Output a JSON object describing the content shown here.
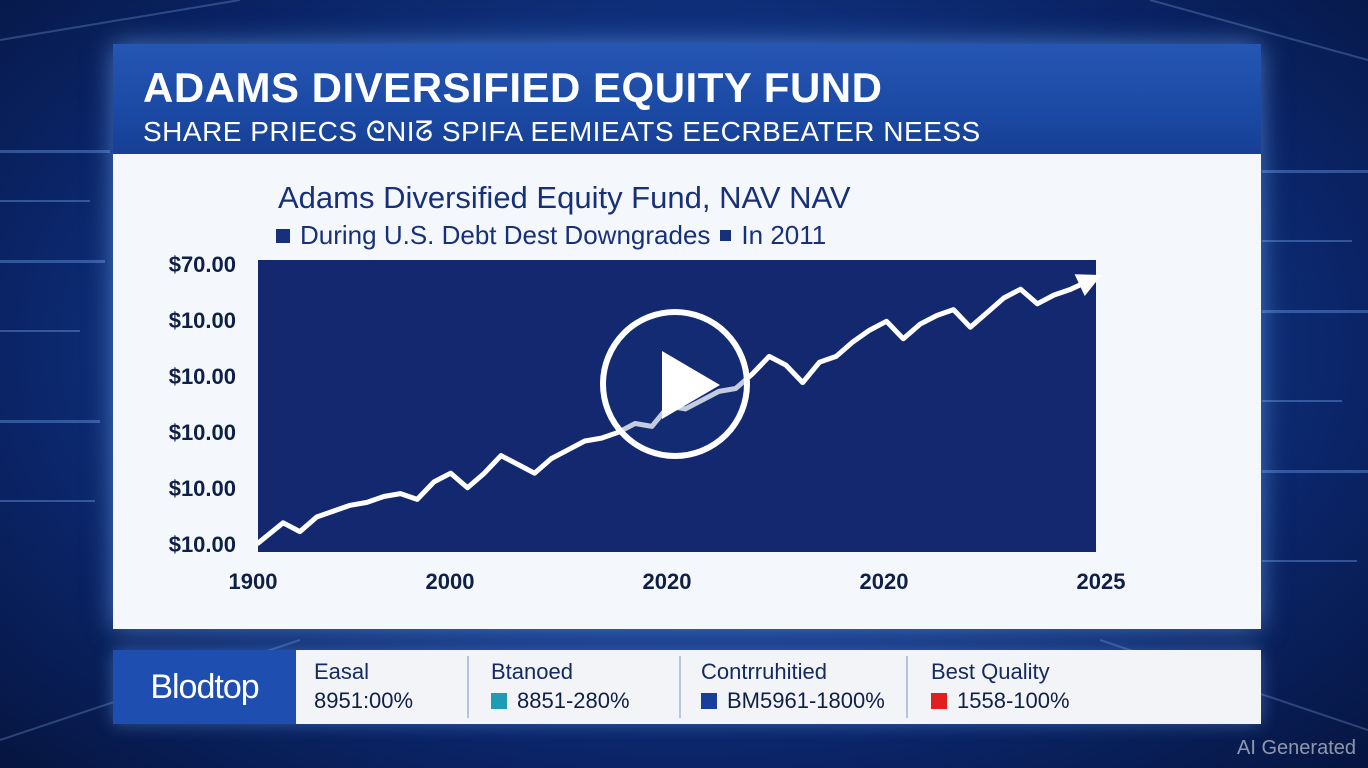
{
  "header": {
    "title": "ADAMS DIVERSIFIED EQUITY FUND",
    "subtitle": "SHARE PRIECS ᘓNIᘔ SPIFA EEMIEATS EECRBEATER NEESS"
  },
  "chart_data": {
    "type": "line",
    "title": "Adams Diversified Equity Fund, NAV NAV",
    "subtitle": "During U.S. Debt Dest Downgrades",
    "subtitle_tail": "In 2011",
    "y_ticks": [
      "$70.00",
      "$10.00",
      "$10.00",
      "$10.00",
      "$10.00",
      "$10.00"
    ],
    "x_ticks": [
      "1900",
      "2000",
      "2020",
      "2020",
      "2025"
    ],
    "series_color": "#ffffff",
    "plot_background": "#13286e",
    "x": [
      0,
      3,
      5,
      7,
      9,
      11,
      13,
      15,
      17,
      19,
      21,
      23,
      25,
      27,
      29,
      31,
      33,
      35,
      37,
      39,
      41,
      43,
      45,
      47,
      49,
      51,
      53,
      55,
      57,
      59,
      61,
      63,
      65,
      67,
      69,
      71,
      73,
      75,
      77,
      79,
      81,
      83,
      85,
      87,
      89,
      91,
      93,
      95,
      97,
      100
    ],
    "values": [
      3,
      10,
      7,
      12,
      14,
      16,
      17,
      19,
      20,
      18,
      24,
      27,
      22,
      27,
      33,
      30,
      27,
      32,
      35,
      38,
      39,
      41,
      44,
      43,
      50,
      49,
      52,
      55,
      56,
      61,
      67,
      64,
      58,
      65,
      67,
      72,
      76,
      79,
      73,
      78,
      81,
      83,
      77,
      82,
      87,
      90,
      85,
      88,
      90,
      94
    ],
    "arrow_end": true
  },
  "play_button": {
    "icon": "play-icon",
    "label": "Play video"
  },
  "ticker": {
    "brand": "Blodtop",
    "items": [
      {
        "label": "Easal",
        "value": "8951:00%",
        "swatch": ""
      },
      {
        "label": "Btanoed",
        "value": "8851-280%",
        "swatch": "#1f9bb6"
      },
      {
        "label": "Contrruhitied",
        "value": "BM5961-1800%",
        "swatch": "#183f98"
      },
      {
        "label": "Best Quality",
        "value": "1558-100%",
        "swatch": "#e0201e"
      }
    ]
  },
  "watermark": "AI Generated"
}
